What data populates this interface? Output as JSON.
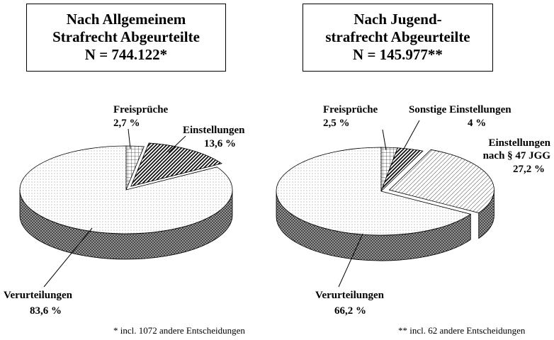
{
  "chart_data": [
    {
      "type": "pie",
      "title": [
        "Nach Allgemeinem",
        "Strafrecht Abgeurteilte"
      ],
      "subtitle": "N = 744.122*",
      "categories": [
        "Freisprüche",
        "Einstellungen",
        "Verurteilungen"
      ],
      "values": [
        2.7,
        13.6,
        83.6
      ],
      "value_labels": [
        "2,7 %",
        "13,6 %",
        "83,6 %"
      ],
      "explode": [
        false,
        true,
        false
      ],
      "note": "* incl. 1072 andere Entscheidungen"
    },
    {
      "type": "pie",
      "title": [
        "Nach Jugend-",
        "strafrecht Abgeurteilte"
      ],
      "subtitle": "N = 145.977**",
      "categories": [
        "Freisprüche",
        "Sonstige Einstellungen",
        "Einstellungen nach § 47 JGG",
        "Verurteilungen"
      ],
      "values": [
        2.5,
        4,
        27.2,
        66.2
      ],
      "value_labels": [
        "2,5 %",
        "4 %",
        "27,2 %",
        "66,2 %"
      ],
      "explode": [
        false,
        false,
        true,
        false
      ],
      "note": "** incl. 62 andere Entscheidungen"
    }
  ]
}
